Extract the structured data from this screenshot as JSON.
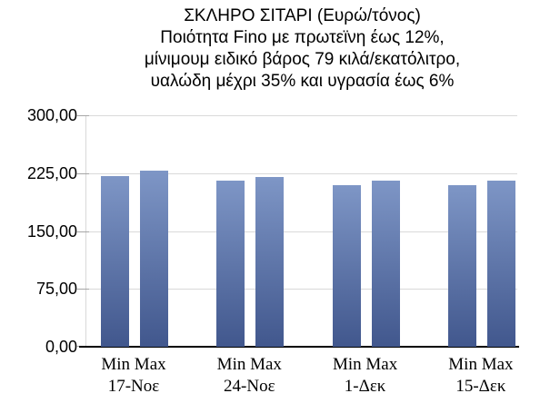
{
  "chart_data": {
    "type": "bar",
    "title_lines": [
      "ΣΚΛΗΡΟ ΣΙΤΑΡΙ (Ευρώ/τόνος)",
      "Ποιότητα Fino με πρωτεϊνη έως 12%,",
      "μίνιμουμ ειδικό βάρος 79 κιλά/εκατόλιτρο,",
      "υαλώδη μέχρι 35% και υγρασία έως 6%"
    ],
    "categories": [
      "17-Νοε",
      "24-Νοε",
      "1-Δεκ",
      "15-Δεκ"
    ],
    "series": [
      {
        "name": "Min",
        "values": [
          221,
          215,
          210,
          210
        ]
      },
      {
        "name": "Max",
        "values": [
          228,
          220,
          215,
          215
        ]
      }
    ],
    "group_series_label": "Min Max",
    "y_tick_labels": [
      "300,00",
      "225,00",
      "150,00",
      "75,00",
      "0,00"
    ],
    "ylim": [
      0,
      300
    ],
    "xlabel": "",
    "ylabel": "",
    "grid": true,
    "legend_position": "none",
    "colors": {
      "bar_gradient_top": "#7E96C6",
      "bar_gradient_bottom": "#41578D",
      "gridline": "#D9D9D9",
      "axis": "#000000",
      "tick_mark": "#A6A6A6",
      "text": "#000000",
      "background": "#FFFFFF"
    }
  }
}
